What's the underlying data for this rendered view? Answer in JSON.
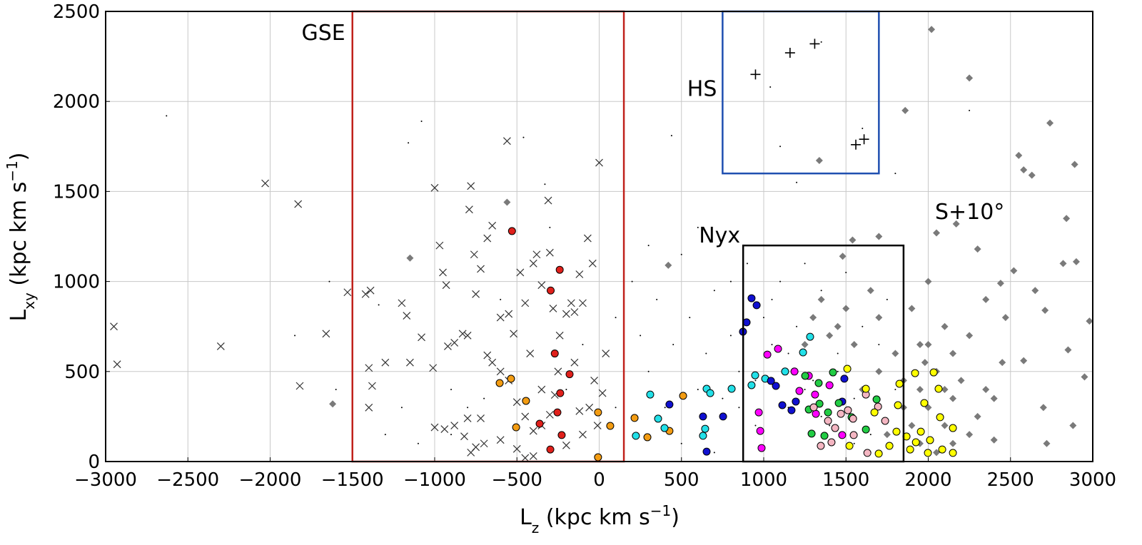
{
  "chart_data": {
    "type": "scatter",
    "x_label": [
      "L",
      "z",
      " (kpc km s",
      "−1",
      ")"
    ],
    "y_label": [
      "L",
      "xy",
      " (kpc km s",
      "−1",
      ")"
    ],
    "xlim": [
      -3000,
      3000
    ],
    "ylim": [
      0,
      2500
    ],
    "xticks": [
      {
        "value": -3000,
        "label": "−3000"
      },
      {
        "value": -2500,
        "label": "−2500"
      },
      {
        "value": -2000,
        "label": "−2000"
      },
      {
        "value": -1500,
        "label": "−1500"
      },
      {
        "value": -1000,
        "label": "−1000"
      },
      {
        "value": -500,
        "label": "−500"
      },
      0,
      500,
      1000,
      1500,
      2000,
      2500,
      3000
    ],
    "yticks": [
      0,
      500,
      1000,
      1500,
      2000,
      2500
    ],
    "grid": true,
    "regions": [
      {
        "label": "GSE",
        "color": "#c0221c",
        "xlim": [
          -1500,
          150
        ],
        "ylim": [
          0,
          2500
        ]
      },
      {
        "label": "HS",
        "color": "#1f4fb0",
        "xlim": [
          750,
          1700
        ],
        "ylim": [
          1600,
          2500
        ]
      },
      {
        "label": "Nyx",
        "color": "#000000",
        "xlim": [
          875,
          1850
        ],
        "ylim": [
          0,
          1200
        ]
      }
    ],
    "annotations": [
      "S+10°"
    ],
    "series": [
      {
        "marker": "dot",
        "color": "#000000",
        "x": [
          -2630,
          -1640,
          -1160,
          -1080,
          -460,
          -330,
          440,
          -1850,
          -1340,
          -900,
          -1200,
          -1100,
          -800,
          -600,
          -500,
          -200,
          100,
          150,
          200,
          250,
          300,
          350,
          400,
          450,
          500,
          550,
          600,
          650,
          700,
          750,
          800,
          850,
          900,
          950,
          1000,
          1050,
          1100,
          1150,
          1200,
          1250,
          1300,
          1350,
          1400,
          1450,
          1500,
          1550,
          1600,
          1650,
          1700,
          1750,
          1800,
          200,
          300,
          500,
          700,
          850,
          950,
          1050,
          1150,
          1250,
          1350,
          1450,
          1550,
          1200,
          1040,
          1350,
          1100,
          300,
          600,
          800,
          100,
          -100,
          -300,
          -700,
          -900,
          -1300,
          -1600,
          2250,
          1600,
          1800
        ],
        "values": [
          1920,
          1000,
          1770,
          1890,
          1800,
          1540,
          1810,
          700,
          870,
          400,
          300,
          100,
          300,
          900,
          200,
          400,
          800,
          600,
          1000,
          700,
          500,
          900,
          300,
          650,
          1150,
          800,
          400,
          600,
          950,
          350,
          700,
          500,
          1100,
          200,
          800,
          650,
          1000,
          300,
          750,
          1100,
          450,
          950,
          200,
          600,
          1050,
          350,
          750,
          150,
          650,
          900,
          400,
          250,
          150,
          100,
          50,
          300,
          450,
          900,
          600,
          400,
          250,
          500,
          100,
          1550,
          2080,
          2330,
          1750,
          1200,
          1300,
          1000,
          300,
          650,
          1300,
          350,
          150,
          150,
          400,
          1950,
          1850,
          1600
        ]
      },
      {
        "marker": "x",
        "color": "#333333",
        "x": [
          -2950,
          -2930,
          -2300,
          -2030,
          -1830,
          -1820,
          -1660,
          -1530,
          -1420,
          -1390,
          -1380,
          -1400,
          -1400,
          -1300,
          -1200,
          -1170,
          -1150,
          -1080,
          -1000,
          -1010,
          -970,
          -950,
          -930,
          -920,
          -880,
          -830,
          -800,
          -780,
          -790,
          -760,
          -750,
          -720,
          -680,
          -650,
          -600,
          -560,
          -550,
          -520,
          -480,
          -450,
          -420,
          -400,
          -380,
          -350,
          -310,
          -300,
          -280,
          -240,
          -200,
          -170,
          -150,
          -120,
          -100,
          -70,
          -40,
          0,
          40,
          -30,
          -60,
          -120,
          -150,
          -250,
          -300,
          -350,
          -400,
          -450,
          -500,
          -550,
          -600,
          -680,
          -720,
          -750,
          -780,
          -800,
          -880,
          -940,
          -1000,
          -820,
          -700,
          -600,
          -500,
          -400,
          -200,
          -100,
          20,
          -10,
          -650,
          -350,
          -270,
          -450
        ],
        "values": [
          750,
          540,
          640,
          1545,
          1430,
          420,
          710,
          940,
          930,
          950,
          420,
          300,
          520,
          550,
          880,
          810,
          550,
          690,
          1520,
          520,
          1200,
          1050,
          980,
          640,
          660,
          710,
          700,
          1530,
          1400,
          1150,
          930,
          1070,
          1240,
          1310,
          800,
          1780,
          820,
          710,
          1050,
          880,
          600,
          1100,
          1150,
          980,
          1450,
          1160,
          850,
          700,
          820,
          880,
          830,
          1040,
          880,
          1240,
          1100,
          1660,
          600,
          450,
          300,
          280,
          550,
          500,
          260,
          200,
          170,
          250,
          330,
          450,
          500,
          590,
          240,
          80,
          50,
          240,
          200,
          180,
          190,
          140,
          100,
          120,
          70,
          30,
          90,
          150,
          380,
          200,
          550,
          400,
          370,
          20
        ]
      },
      {
        "marker": "diamond",
        "color": "#6b6b6b",
        "x": [
          2020,
          2250,
          1860,
          1338,
          2550,
          2580,
          2630,
          2740,
          2890,
          2840,
          2820,
          2980,
          2440,
          2710,
          -560,
          -1150,
          -1620,
          420,
          2170,
          2050,
          1700,
          1540,
          1480,
          2300,
          2520,
          2650,
          2900,
          2000,
          1650,
          2350,
          2470,
          2850,
          2950,
          2580,
          2700,
          2880,
          2720,
          1900,
          1700,
          1500,
          1350,
          1450,
          2100,
          2250,
          2150,
          1950,
          1800,
          2050,
          2200,
          2350,
          2300,
          2150,
          1950,
          1850,
          2100,
          2250,
          2400,
          1950,
          2050,
          1700,
          1600,
          1550,
          1400,
          1300,
          1850,
          2000,
          2450,
          2400,
          1750,
          2150,
          1250,
          2000,
          1900,
          1980,
          2100
        ],
        "values": [
          2400,
          2130,
          1950,
          1672,
          1700,
          1620,
          1590,
          1880,
          1650,
          1350,
          1100,
          780,
          990,
          840,
          1440,
          1130,
          320,
          1090,
          1320,
          1270,
          1250,
          1230,
          1140,
          1180,
          1060,
          950,
          1110,
          1000,
          950,
          900,
          800,
          620,
          470,
          560,
          300,
          200,
          100,
          850,
          800,
          850,
          900,
          750,
          750,
          700,
          600,
          650,
          600,
          500,
          450,
          400,
          250,
          350,
          400,
          300,
          200,
          150,
          120,
          100,
          50,
          500,
          400,
          650,
          700,
          800,
          450,
          300,
          550,
          350,
          150,
          100,
          650,
          650,
          200,
          550,
          400
        ]
      },
      {
        "marker": "circle",
        "color": "#e0201b",
        "x": [
          -530,
          -240,
          -295,
          -270,
          -180,
          -237,
          -254,
          -362,
          -228,
          -297
        ],
        "values": [
          1280,
          1065,
          950,
          600,
          485,
          380,
          273,
          210,
          147,
          67
        ]
      },
      {
        "marker": "circle",
        "color": "#f39c12",
        "x": [
          -605,
          -536,
          -445,
          -505,
          -7,
          67,
          -7,
          215,
          293,
          427,
          510
        ],
        "values": [
          436,
          460,
          337,
          190,
          273,
          198,
          24,
          242,
          135,
          170,
          365
        ]
      },
      {
        "marker": "circle",
        "color": "#22e0e8",
        "x": [
          310,
          358,
          397,
          223,
          653,
          675,
          805,
          926,
          948,
          1009,
          1282,
          1239,
          1130,
          644,
          631
        ],
        "values": [
          372,
          238,
          186,
          143,
          404,
          380,
          404,
          424,
          479,
          460,
          693,
          606,
          500,
          182,
          143
        ]
      },
      {
        "marker": "circle",
        "color": "#1010d0",
        "x": [
          926,
          957,
          896,
          874,
          427,
          631,
          753,
          653,
          1074,
          1044,
          1113,
          1195,
          1490,
          1477,
          1169
        ],
        "values": [
          907,
          868,
          773,
          721,
          317,
          250,
          250,
          55,
          420,
          448,
          313,
          333,
          460,
          333,
          285
        ]
      },
      {
        "marker": "circle",
        "color": "#ff00ff",
        "x": [
          1022,
          1087,
          1187,
          1274,
          1217,
          1312,
          1317,
          970,
          979,
          987,
          1400,
          1477
        ],
        "values": [
          594,
          626,
          500,
          476,
          392,
          372,
          265,
          273,
          170,
          75,
          424,
          147
        ]
      },
      {
        "marker": "circle",
        "color": "#22cc44",
        "x": [
          1252,
          1421,
          1334,
          1274,
          1339,
          1391,
          1456,
          1291,
          1369,
          1534,
          1686,
          1621
        ],
        "values": [
          476,
          495,
          436,
          289,
          321,
          273,
          325,
          155,
          143,
          246,
          345,
          178
        ]
      },
      {
        "marker": "circle",
        "color": "#f4b6c2",
        "x": [
          1304,
          1391,
          1469,
          1512,
          1543,
          1434,
          1347,
          1412,
          1621,
          1695,
          1630,
          1547,
          1738
        ],
        "values": [
          301,
          226,
          265,
          285,
          238,
          186,
          87,
          107,
          372,
          305,
          48,
          147,
          226
        ]
      },
      {
        "marker": "circle",
        "color": "#ffff00",
        "x": [
          1508,
          1621,
          1673,
          1816,
          1825,
          1920,
          2033,
          2063,
          1976,
          2072,
          2150,
          1955,
          1868,
          1890,
          1998,
          2085,
          2150,
          1807,
          1764,
          1699,
          1521,
          1925,
          2011
        ],
        "values": [
          515,
          404,
          273,
          313,
          432,
          491,
          495,
          404,
          325,
          246,
          186,
          166,
          139,
          67,
          48,
          67,
          48,
          166,
          87,
          44,
          87,
          107,
          119
        ]
      },
      {
        "marker": "plus",
        "color": "#000000",
        "x": [
          950,
          1160,
          1310,
          1560,
          1610
        ],
        "values": [
          2150,
          2270,
          2320,
          1760,
          1790
        ]
      }
    ]
  }
}
